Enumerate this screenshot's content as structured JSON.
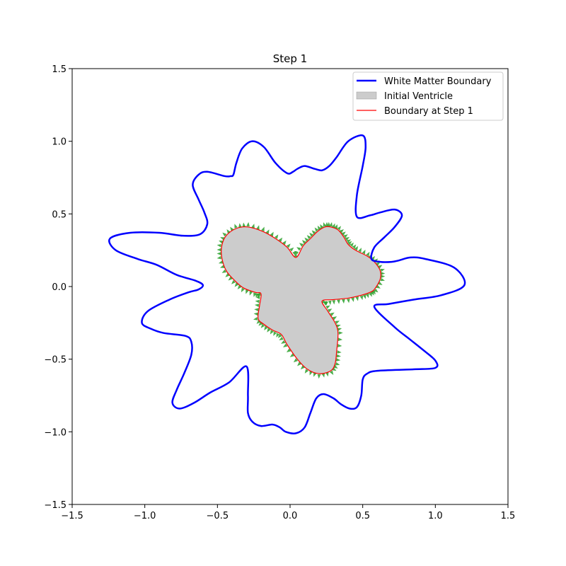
{
  "chart_data": {
    "type": "line",
    "title": "Step 1",
    "xlabel": "",
    "ylabel": "",
    "xlim": [
      -1.5,
      1.5
    ],
    "ylim": [
      -1.5,
      1.5
    ],
    "grid": false,
    "legend_position": "top-right",
    "x_ticks": [
      {
        "value": -1.5,
        "label": "−1.5"
      },
      {
        "value": -1.0,
        "label": "−1.0"
      },
      {
        "value": -0.5,
        "label": "−0.5"
      },
      {
        "value": 0.0,
        "label": "0.0"
      },
      {
        "value": 0.5,
        "label": "0.5"
      },
      {
        "value": 1.0,
        "label": "1.0"
      },
      {
        "value": 1.5,
        "label": "1.5"
      }
    ],
    "y_ticks": [
      {
        "value": -1.5,
        "label": "−1.5"
      },
      {
        "value": -1.0,
        "label": "−1.0"
      },
      {
        "value": -0.5,
        "label": "−0.5"
      },
      {
        "value": 0.0,
        "label": "0.0"
      },
      {
        "value": 0.5,
        "label": "0.5"
      },
      {
        "value": 1.0,
        "label": "1.0"
      },
      {
        "value": 1.5,
        "label": "1.5"
      }
    ],
    "series": [
      {
        "name": "White Matter Boundary",
        "kind": "line",
        "color": "#0000ff",
        "points": [
          [
            1.2,
            0.01
          ],
          [
            1.13,
            0.13
          ],
          [
            0.93,
            0.19
          ],
          [
            0.83,
            0.2
          ],
          [
            0.75,
            0.18
          ],
          [
            0.7,
            0.17
          ],
          [
            0.62,
            0.17
          ],
          [
            0.56,
            0.19
          ],
          [
            0.58,
            0.27
          ],
          [
            0.65,
            0.34
          ],
          [
            0.72,
            0.41
          ],
          [
            0.77,
            0.49
          ],
          [
            0.72,
            0.53
          ],
          [
            0.62,
            0.51
          ],
          [
            0.55,
            0.49
          ],
          [
            0.46,
            0.48
          ],
          [
            0.46,
            0.63
          ],
          [
            0.5,
            0.83
          ],
          [
            0.52,
            0.96
          ],
          [
            0.5,
            1.04
          ],
          [
            0.4,
            1.0
          ],
          [
            0.32,
            0.89
          ],
          [
            0.27,
            0.83
          ],
          [
            0.22,
            0.8
          ],
          [
            0.17,
            0.81
          ],
          [
            0.1,
            0.83
          ],
          [
            0.05,
            0.81
          ],
          [
            0.02,
            0.79
          ],
          [
            -0.02,
            0.78
          ],
          [
            -0.1,
            0.85
          ],
          [
            -0.18,
            0.96
          ],
          [
            -0.26,
            1.0
          ],
          [
            -0.33,
            0.95
          ],
          [
            -0.37,
            0.85
          ],
          [
            -0.39,
            0.77
          ],
          [
            -0.41,
            0.76
          ],
          [
            -0.45,
            0.76
          ],
          [
            -0.57,
            0.79
          ],
          [
            -0.63,
            0.77
          ],
          [
            -0.67,
            0.7
          ],
          [
            -0.63,
            0.6
          ],
          [
            -0.59,
            0.51
          ],
          [
            -0.57,
            0.43
          ],
          [
            -0.62,
            0.36
          ],
          [
            -0.74,
            0.35
          ],
          [
            -0.9,
            0.37
          ],
          [
            -1.1,
            0.37
          ],
          [
            -1.24,
            0.33
          ],
          [
            -1.2,
            0.25
          ],
          [
            -1.05,
            0.19
          ],
          [
            -0.92,
            0.15
          ],
          [
            -0.78,
            0.08
          ],
          [
            -0.65,
            0.04
          ],
          [
            -0.6,
            0.01
          ],
          [
            -0.63,
            -0.02
          ],
          [
            -0.7,
            -0.04
          ],
          [
            -0.83,
            -0.09
          ],
          [
            -0.98,
            -0.17
          ],
          [
            -1.02,
            -0.25
          ],
          [
            -0.96,
            -0.29
          ],
          [
            -0.87,
            -0.32
          ],
          [
            -0.72,
            -0.34
          ],
          [
            -0.68,
            -0.38
          ],
          [
            -0.68,
            -0.47
          ],
          [
            -0.73,
            -0.6
          ],
          [
            -0.78,
            -0.71
          ],
          [
            -0.81,
            -0.8
          ],
          [
            -0.76,
            -0.84
          ],
          [
            -0.66,
            -0.8
          ],
          [
            -0.55,
            -0.73
          ],
          [
            -0.42,
            -0.66
          ],
          [
            -0.3,
            -0.55
          ],
          [
            -0.29,
            -0.75
          ],
          [
            -0.29,
            -0.87
          ],
          [
            -0.26,
            -0.93
          ],
          [
            -0.2,
            -0.96
          ],
          [
            -0.12,
            -0.95
          ],
          [
            -0.07,
            -0.97
          ],
          [
            -0.03,
            -1.0
          ],
          [
            0.04,
            -1.01
          ],
          [
            0.1,
            -0.97
          ],
          [
            0.14,
            -0.87
          ],
          [
            0.18,
            -0.77
          ],
          [
            0.23,
            -0.74
          ],
          [
            0.3,
            -0.77
          ],
          [
            0.35,
            -0.81
          ],
          [
            0.41,
            -0.84
          ],
          [
            0.46,
            -0.83
          ],
          [
            0.49,
            -0.75
          ],
          [
            0.5,
            -0.64
          ],
          [
            0.53,
            -0.6
          ],
          [
            0.6,
            -0.58
          ],
          [
            0.85,
            -0.57
          ],
          [
            1.0,
            -0.56
          ],
          [
            1.0,
            -0.51
          ],
          [
            0.92,
            -0.44
          ],
          [
            0.82,
            -0.36
          ],
          [
            0.72,
            -0.28
          ],
          [
            0.58,
            -0.14
          ],
          [
            0.68,
            -0.12
          ],
          [
            0.85,
            -0.09
          ],
          [
            1.04,
            -0.06
          ],
          [
            1.2,
            0.01
          ]
        ]
      },
      {
        "name": "Initial Ventricle",
        "kind": "fill",
        "color": "#cccccc",
        "points": [
          [
            0.62,
            0.05
          ],
          [
            0.58,
            -0.02
          ],
          [
            0.55,
            -0.04
          ],
          [
            0.49,
            -0.06
          ],
          [
            0.4,
            -0.08
          ],
          [
            0.3,
            -0.09
          ],
          [
            0.22,
            -0.1
          ],
          [
            0.26,
            -0.17
          ],
          [
            0.31,
            -0.25
          ],
          [
            0.33,
            -0.32
          ],
          [
            0.32,
            -0.45
          ],
          [
            0.31,
            -0.53
          ],
          [
            0.28,
            -0.58
          ],
          [
            0.2,
            -0.6
          ],
          [
            0.12,
            -0.57
          ],
          [
            0.05,
            -0.5
          ],
          [
            -0.02,
            -0.4
          ],
          [
            -0.06,
            -0.33
          ],
          [
            -0.12,
            -0.3
          ],
          [
            -0.18,
            -0.26
          ],
          [
            -0.22,
            -0.22
          ],
          [
            -0.21,
            -0.13
          ],
          [
            -0.2,
            -0.05
          ],
          [
            -0.24,
            -0.04
          ],
          [
            -0.32,
            -0.01
          ],
          [
            -0.38,
            0.04
          ],
          [
            -0.44,
            0.11
          ],
          [
            -0.47,
            0.2
          ],
          [
            -0.47,
            0.28
          ],
          [
            -0.44,
            0.35
          ],
          [
            -0.37,
            0.4
          ],
          [
            -0.29,
            0.41
          ],
          [
            -0.19,
            0.38
          ],
          [
            -0.1,
            0.33
          ],
          [
            -0.02,
            0.27
          ],
          [
            0.04,
            0.2
          ],
          [
            0.09,
            0.28
          ],
          [
            0.14,
            0.33
          ],
          [
            0.19,
            0.38
          ],
          [
            0.24,
            0.41
          ],
          [
            0.28,
            0.41
          ],
          [
            0.33,
            0.39
          ],
          [
            0.37,
            0.34
          ],
          [
            0.4,
            0.29
          ],
          [
            0.45,
            0.25
          ],
          [
            0.53,
            0.21
          ],
          [
            0.58,
            0.17
          ],
          [
            0.62,
            0.11
          ],
          [
            0.62,
            0.05
          ]
        ]
      },
      {
        "name": "Boundary at Step 1",
        "kind": "line",
        "color": "#ff0000",
        "points": [
          [
            0.62,
            0.05
          ],
          [
            0.58,
            -0.02
          ],
          [
            0.55,
            -0.04
          ],
          [
            0.49,
            -0.06
          ],
          [
            0.4,
            -0.08
          ],
          [
            0.3,
            -0.09
          ],
          [
            0.22,
            -0.1
          ],
          [
            0.26,
            -0.17
          ],
          [
            0.31,
            -0.25
          ],
          [
            0.33,
            -0.32
          ],
          [
            0.32,
            -0.45
          ],
          [
            0.31,
            -0.53
          ],
          [
            0.28,
            -0.58
          ],
          [
            0.2,
            -0.6
          ],
          [
            0.12,
            -0.57
          ],
          [
            0.05,
            -0.5
          ],
          [
            -0.02,
            -0.4
          ],
          [
            -0.06,
            -0.33
          ],
          [
            -0.12,
            -0.3
          ],
          [
            -0.18,
            -0.26
          ],
          [
            -0.22,
            -0.22
          ],
          [
            -0.21,
            -0.13
          ],
          [
            -0.2,
            -0.05
          ],
          [
            -0.24,
            -0.04
          ],
          [
            -0.32,
            -0.01
          ],
          [
            -0.38,
            0.04
          ],
          [
            -0.44,
            0.11
          ],
          [
            -0.47,
            0.2
          ],
          [
            -0.47,
            0.28
          ],
          [
            -0.44,
            0.35
          ],
          [
            -0.37,
            0.4
          ],
          [
            -0.29,
            0.41
          ],
          [
            -0.19,
            0.38
          ],
          [
            -0.1,
            0.33
          ],
          [
            -0.02,
            0.27
          ],
          [
            0.04,
            0.2
          ],
          [
            0.09,
            0.28
          ],
          [
            0.14,
            0.33
          ],
          [
            0.19,
            0.38
          ],
          [
            0.24,
            0.41
          ],
          [
            0.28,
            0.41
          ],
          [
            0.33,
            0.39
          ],
          [
            0.37,
            0.34
          ],
          [
            0.4,
            0.29
          ],
          [
            0.45,
            0.25
          ],
          [
            0.53,
            0.21
          ],
          [
            0.58,
            0.17
          ],
          [
            0.62,
            0.11
          ],
          [
            0.62,
            0.05
          ]
        ]
      }
    ],
    "arrows": {
      "color": "#2ca02c",
      "offset": 0.022,
      "count": 140
    }
  }
}
